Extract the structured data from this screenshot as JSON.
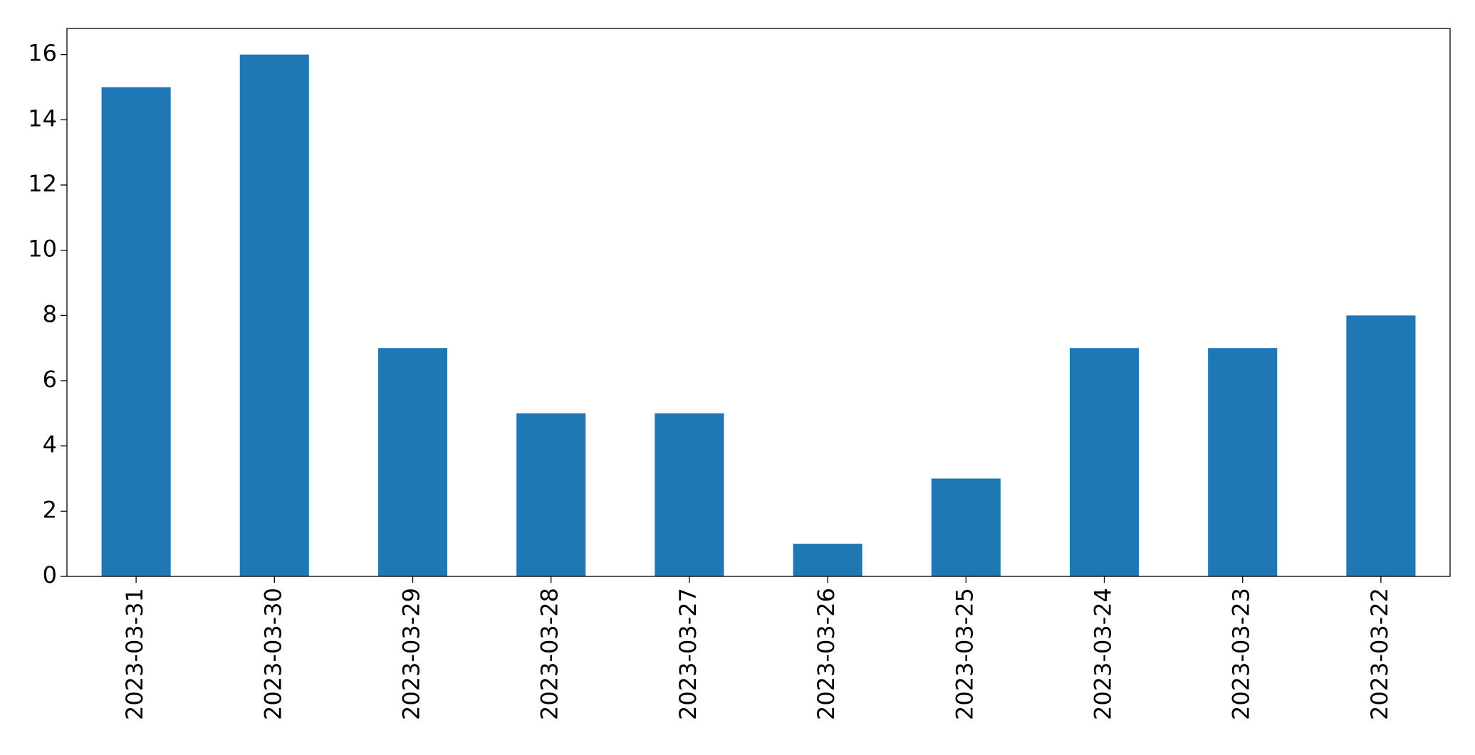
{
  "chart_data": {
    "type": "bar",
    "categories": [
      "2023-03-31",
      "2023-03-30",
      "2023-03-29",
      "2023-03-28",
      "2023-03-27",
      "2023-03-26",
      "2023-03-25",
      "2023-03-24",
      "2023-03-23",
      "2023-03-22"
    ],
    "values": [
      15,
      16,
      7,
      5,
      5,
      1,
      3,
      7,
      7,
      8
    ],
    "color": "#1f77b4",
    "ylim": [
      0,
      16.8
    ],
    "yticks": [
      0,
      2,
      4,
      6,
      8,
      10,
      12,
      14,
      16
    ],
    "grid": false
  }
}
